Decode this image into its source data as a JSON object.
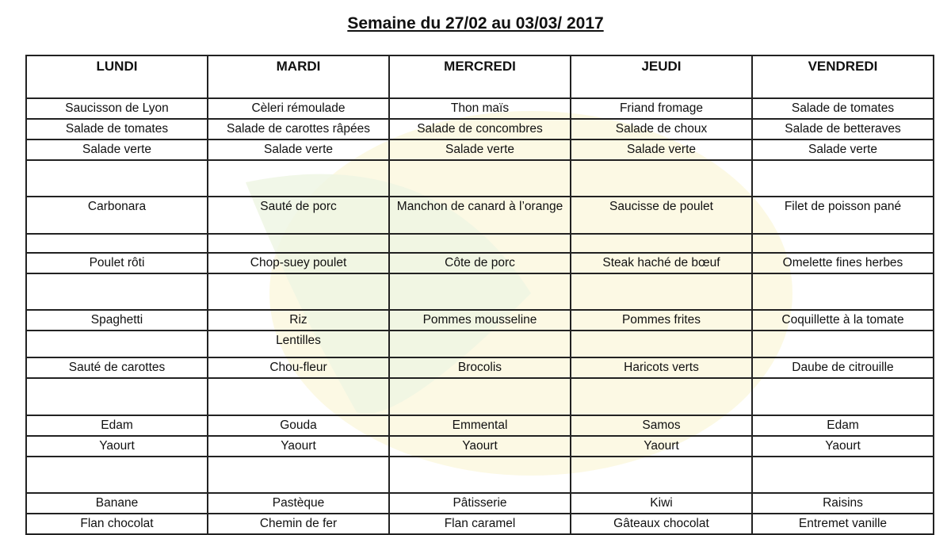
{
  "title": "Semaine du 27/02 au 03/03/ 2017",
  "days": [
    "LUNDI",
    "MARDI",
    "MERCREDI",
    "JEUDI",
    "VENDREDI"
  ],
  "rows": [
    {
      "h": 23,
      "cells": [
        "Saucisson de Lyon",
        "Cèleri rémoulade",
        "Thon maïs",
        "Friand fromage",
        "Salade de tomates"
      ]
    },
    {
      "h": 24,
      "cells": [
        "Salade de tomates",
        "Salade de carottes râpées",
        "Salade de concombres",
        "Salade de choux",
        "Salade de betteraves"
      ]
    },
    {
      "h": 25,
      "cells": [
        "Salade verte",
        "Salade verte",
        "Salade verte",
        "Salade verte",
        "Salade verte"
      ]
    },
    {
      "h": 46,
      "cells": [
        "",
        "",
        "",
        "",
        ""
      ]
    },
    {
      "h": 47,
      "cells": [
        "Carbonara",
        "Sauté de porc",
        "Manchon de canard à l’orange",
        "Saucisse de poulet",
        "Filet de poisson pané"
      ]
    },
    {
      "h": 24,
      "cells": [
        "",
        "",
        "",
        "",
        ""
      ]
    },
    {
      "h": 25,
      "cells": [
        "Poulet rôti",
        "Chop-suey poulet",
        "Côte de porc",
        "Steak haché de bœuf",
        "Omelette fines herbes"
      ]
    },
    {
      "h": 46,
      "cells": [
        "",
        "",
        "",
        "",
        ""
      ]
    },
    {
      "h": 23,
      "cells": [
        "Spaghetti",
        "Riz",
        "Pommes mousseline",
        "Pommes frites",
        "Coquillette à la tomate"
      ]
    },
    {
      "h": 34,
      "cells": [
        "",
        "Lentilles",
        "",
        "",
        ""
      ]
    },
    {
      "h": 25,
      "cells": [
        "Sauté de carottes",
        "Chou-fleur",
        "Brocolis",
        "Haricots verts",
        "Daube de citrouille"
      ]
    },
    {
      "h": 47,
      "cells": [
        "",
        "",
        "",
        "",
        ""
      ]
    },
    {
      "h": 23,
      "cells": [
        "Edam",
        "Gouda",
        "Emmental",
        "Samos",
        "Edam"
      ]
    },
    {
      "h": 25,
      "cells": [
        "Yaourt",
        "Yaourt",
        "Yaourt",
        "Yaourt",
        "Yaourt"
      ]
    },
    {
      "h": 46,
      "cells": [
        "",
        "",
        "",
        "",
        ""
      ]
    },
    {
      "h": 23,
      "cells": [
        "Banane",
        "Pastèque",
        "Pâtisserie",
        "Kiwi",
        "Raisins"
      ]
    },
    {
      "h": 25,
      "cells": [
        "Flan chocolat",
        "Chemin de fer",
        "Flan caramel",
        "Gâteaux chocolat",
        "Entremet vanille"
      ]
    }
  ]
}
